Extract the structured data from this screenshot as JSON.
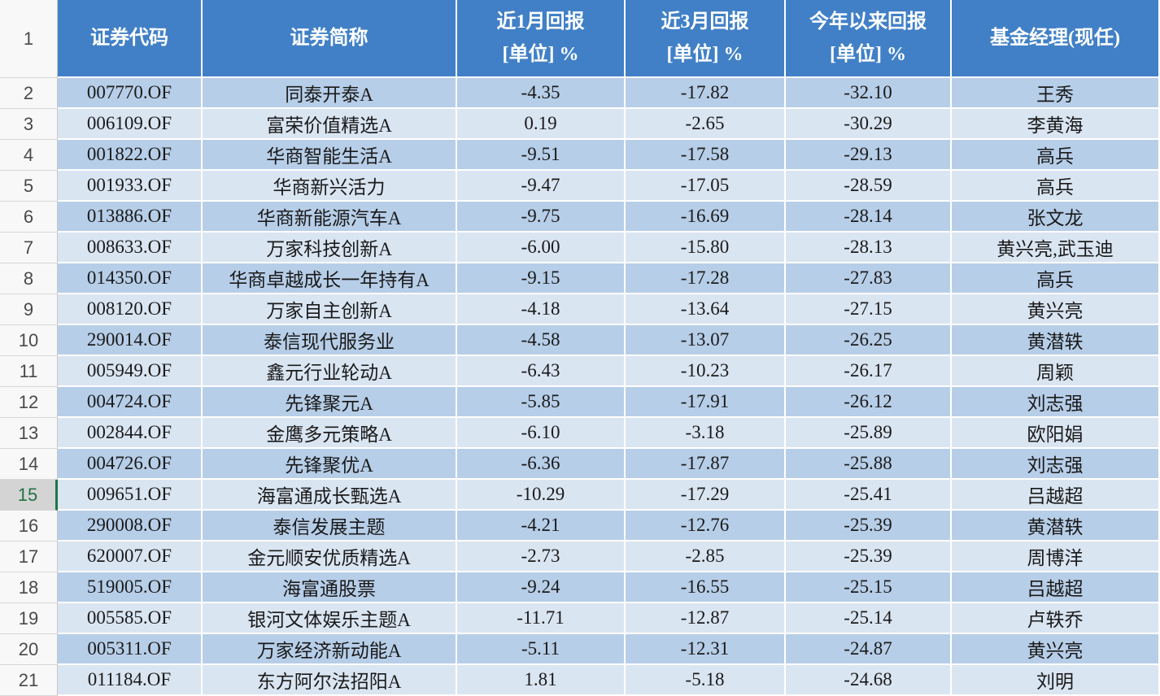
{
  "header": {
    "row_number": "1",
    "columns": [
      {
        "title": "证券代码"
      },
      {
        "title": "证券简称"
      },
      {
        "title": "近1月回报",
        "unit": "[单位] %"
      },
      {
        "title": "近3月回报",
        "unit": "[单位] %"
      },
      {
        "title": "今年以来回报",
        "unit": "[单位] %"
      },
      {
        "title": "基金经理(现任)"
      }
    ]
  },
  "rows": [
    {
      "row_number": "2",
      "code": "007770.OF",
      "name": "同泰开泰A",
      "ret_1m": "-4.35",
      "ret_3m": "-17.82",
      "ret_ytd": "-32.10",
      "manager": "王秀"
    },
    {
      "row_number": "3",
      "code": "006109.OF",
      "name": "富荣价值精选A",
      "ret_1m": "0.19",
      "ret_3m": "-2.65",
      "ret_ytd": "-30.29",
      "manager": "李黄海"
    },
    {
      "row_number": "4",
      "code": "001822.OF",
      "name": "华商智能生活A",
      "ret_1m": "-9.51",
      "ret_3m": "-17.58",
      "ret_ytd": "-29.13",
      "manager": "高兵"
    },
    {
      "row_number": "5",
      "code": "001933.OF",
      "name": "华商新兴活力",
      "ret_1m": "-9.47",
      "ret_3m": "-17.05",
      "ret_ytd": "-28.59",
      "manager": "高兵"
    },
    {
      "row_number": "6",
      "code": "013886.OF",
      "name": "华商新能源汽车A",
      "ret_1m": "-9.75",
      "ret_3m": "-16.69",
      "ret_ytd": "-28.14",
      "manager": "张文龙"
    },
    {
      "row_number": "7",
      "code": "008633.OF",
      "name": "万家科技创新A",
      "ret_1m": "-6.00",
      "ret_3m": "-15.80",
      "ret_ytd": "-28.13",
      "manager": "黄兴亮,武玉迪"
    },
    {
      "row_number": "8",
      "code": "014350.OF",
      "name": "华商卓越成长一年持有A",
      "ret_1m": "-9.15",
      "ret_3m": "-17.28",
      "ret_ytd": "-27.83",
      "manager": "高兵"
    },
    {
      "row_number": "9",
      "code": "008120.OF",
      "name": "万家自主创新A",
      "ret_1m": "-4.18",
      "ret_3m": "-13.64",
      "ret_ytd": "-27.15",
      "manager": "黄兴亮"
    },
    {
      "row_number": "10",
      "code": "290014.OF",
      "name": "泰信现代服务业",
      "ret_1m": "-4.58",
      "ret_3m": "-13.07",
      "ret_ytd": "-26.25",
      "manager": "黄潜轶"
    },
    {
      "row_number": "11",
      "code": "005949.OF",
      "name": "鑫元行业轮动A",
      "ret_1m": "-6.43",
      "ret_3m": "-10.23",
      "ret_ytd": "-26.17",
      "manager": "周颖"
    },
    {
      "row_number": "12",
      "code": "004724.OF",
      "name": "先锋聚元A",
      "ret_1m": "-5.85",
      "ret_3m": "-17.91",
      "ret_ytd": "-26.12",
      "manager": "刘志强"
    },
    {
      "row_number": "13",
      "code": "002844.OF",
      "name": "金鹰多元策略A",
      "ret_1m": "-6.10",
      "ret_3m": "-3.18",
      "ret_ytd": "-25.89",
      "manager": "欧阳娟"
    },
    {
      "row_number": "14",
      "code": "004726.OF",
      "name": "先锋聚优A",
      "ret_1m": "-6.36",
      "ret_3m": "-17.87",
      "ret_ytd": "-25.88",
      "manager": "刘志强"
    },
    {
      "row_number": "15",
      "code": "009651.OF",
      "name": "海富通成长甄选A",
      "ret_1m": "-10.29",
      "ret_3m": "-17.29",
      "ret_ytd": "-25.41",
      "manager": "吕越超"
    },
    {
      "row_number": "16",
      "code": "290008.OF",
      "name": "泰信发展主题",
      "ret_1m": "-4.21",
      "ret_3m": "-12.76",
      "ret_ytd": "-25.39",
      "manager": "黄潜轶"
    },
    {
      "row_number": "17",
      "code": "620007.OF",
      "name": "金元顺安优质精选A",
      "ret_1m": "-2.73",
      "ret_3m": "-2.85",
      "ret_ytd": "-25.39",
      "manager": "周博洋"
    },
    {
      "row_number": "18",
      "code": "519005.OF",
      "name": "海富通股票",
      "ret_1m": "-9.24",
      "ret_3m": "-16.55",
      "ret_ytd": "-25.15",
      "manager": "吕越超"
    },
    {
      "row_number": "19",
      "code": "005585.OF",
      "name": "银河文体娱乐主题A",
      "ret_1m": "-11.71",
      "ret_3m": "-12.87",
      "ret_ytd": "-25.14",
      "manager": "卢轶乔"
    },
    {
      "row_number": "20",
      "code": "005311.OF",
      "name": "万家经济新动能A",
      "ret_1m": "-5.11",
      "ret_3m": "-12.31",
      "ret_ytd": "-24.87",
      "manager": "黄兴亮"
    },
    {
      "row_number": "21",
      "code": "011184.OF",
      "name": "东方阿尔法招阳A",
      "ret_1m": "1.81",
      "ret_3m": "-5.18",
      "ret_ytd": "-24.68",
      "manager": "刘明"
    }
  ],
  "selection": {
    "selected_row": 15
  },
  "colors": {
    "header_bg": "#4180c6",
    "row_dark": "#b7cee8",
    "row_light": "#dae5f2",
    "row_number_bg": "#f8f8f8",
    "row_number_selected_bg": "#d4d4d4",
    "row_number_selected_fg": "#217346"
  }
}
